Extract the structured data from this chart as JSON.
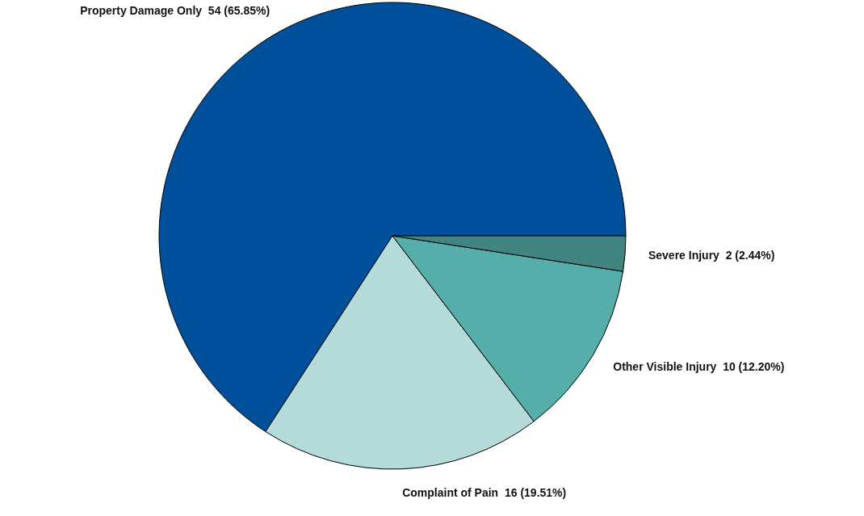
{
  "chart_data": {
    "type": "pie",
    "categories": [
      "Property Damage Only",
      "Complaint of Pain",
      "Other Visible Injury",
      "Severe Injury"
    ],
    "values": [
      54,
      16,
      10,
      2
    ],
    "value_labels": [
      "54 (65.85%)",
      "16 (19.51%)",
      "10 (12.20%)",
      "2 (2.44%)"
    ],
    "colors": [
      "#004f9a",
      "#b4dada",
      "#56aeaa",
      "#428480"
    ]
  }
}
